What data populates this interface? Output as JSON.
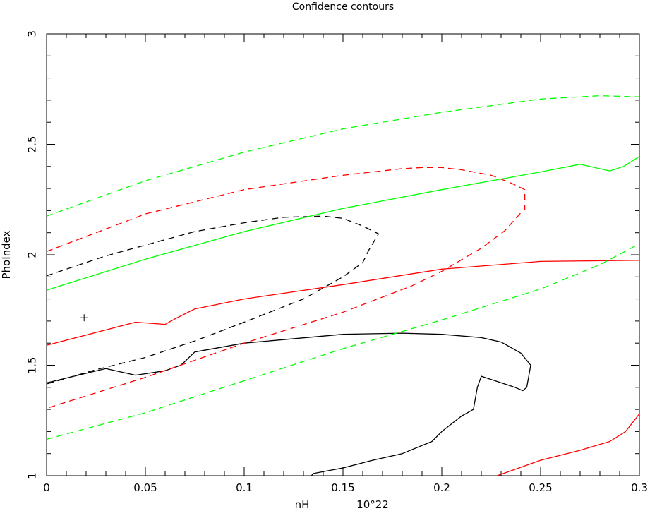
{
  "chart_data": {
    "type": "line",
    "title": "Confidence contours",
    "xlabel": "nH        10^22",
    "ylabel": "PhoIndex",
    "xlim": [
      0,
      0.3
    ],
    "ylim": [
      1,
      3
    ],
    "x_ticks": [
      "0",
      "0.05",
      "0.1",
      "0.15",
      "0.2",
      "0.25",
      "0.3"
    ],
    "y_ticks": [
      "1",
      "1.5",
      "2",
      "2.5",
      "3"
    ],
    "best_fit": {
      "x": 0.019,
      "y": 1.715
    },
    "series": [
      {
        "color": "#000000",
        "dash": false,
        "points": [
          [
            0,
            1.42
          ],
          [
            0.03,
            1.485
          ],
          [
            0.045,
            1.455
          ],
          [
            0.06,
            1.475
          ],
          [
            0.068,
            1.5
          ],
          [
            0.075,
            1.56
          ],
          [
            0.1,
            1.6
          ],
          [
            0.15,
            1.64
          ],
          [
            0.18,
            1.645
          ],
          [
            0.2,
            1.64
          ],
          [
            0.22,
            1.625
          ],
          [
            0.23,
            1.605
          ],
          [
            0.24,
            1.555
          ],
          [
            0.245,
            1.5
          ],
          [
            0.243,
            1.4
          ],
          [
            0.241,
            1.385
          ],
          [
            0.237,
            1.4
          ],
          [
            0.22,
            1.45
          ],
          [
            0.218,
            1.4
          ],
          [
            0.216,
            1.3
          ],
          [
            0.21,
            1.27
          ],
          [
            0.2,
            1.2
          ],
          [
            0.195,
            1.155
          ],
          [
            0.18,
            1.1
          ],
          [
            0.165,
            1.07
          ],
          [
            0.15,
            1.035
          ],
          [
            0.135,
            1.01
          ],
          [
            0.134,
            1.0
          ]
        ]
      },
      {
        "color": "#000000",
        "dash": true,
        "points": [
          [
            0,
            1.905
          ],
          [
            0.03,
            1.995
          ],
          [
            0.075,
            2.105
          ],
          [
            0.1,
            2.145
          ],
          [
            0.12,
            2.17
          ],
          [
            0.14,
            2.175
          ],
          [
            0.15,
            2.165
          ],
          [
            0.16,
            2.13
          ],
          [
            0.168,
            2.095
          ],
          [
            0.163,
            2.02
          ],
          [
            0.16,
            1.965
          ],
          [
            0.15,
            1.9
          ],
          [
            0.13,
            1.8
          ],
          [
            0.1,
            1.695
          ],
          [
            0.075,
            1.61
          ],
          [
            0.05,
            1.535
          ],
          [
            0.025,
            1.48
          ],
          [
            0,
            1.415
          ]
        ]
      },
      {
        "color": "#ff0000",
        "dash": false,
        "points": [
          [
            0,
            1.59
          ],
          [
            0.045,
            1.695
          ],
          [
            0.06,
            1.685
          ],
          [
            0.065,
            1.71
          ],
          [
            0.075,
            1.755
          ],
          [
            0.1,
            1.8
          ],
          [
            0.15,
            1.865
          ],
          [
            0.2,
            1.935
          ],
          [
            0.25,
            1.97
          ],
          [
            0.3,
            1.975
          ]
        ]
      },
      {
        "color": "#ff0000",
        "dash": false,
        "points": [
          [
            0.228,
            1.0
          ],
          [
            0.25,
            1.07
          ],
          [
            0.27,
            1.115
          ],
          [
            0.285,
            1.155
          ],
          [
            0.293,
            1.2
          ],
          [
            0.3,
            1.28
          ]
        ]
      },
      {
        "color": "#ff0000",
        "dash": true,
        "points": [
          [
            0,
            2.015
          ],
          [
            0.05,
            2.185
          ],
          [
            0.1,
            2.295
          ],
          [
            0.15,
            2.36
          ],
          [
            0.18,
            2.39
          ],
          [
            0.19,
            2.395
          ],
          [
            0.2,
            2.395
          ],
          [
            0.21,
            2.385
          ],
          [
            0.225,
            2.36
          ],
          [
            0.235,
            2.325
          ],
          [
            0.242,
            2.295
          ],
          [
            0.242,
            2.205
          ],
          [
            0.24,
            2.19
          ],
          [
            0.232,
            2.11
          ],
          [
            0.22,
            2.03
          ],
          [
            0.2,
            1.925
          ],
          [
            0.185,
            1.86
          ],
          [
            0.15,
            1.74
          ],
          [
            0.1,
            1.6
          ],
          [
            0.05,
            1.445
          ],
          [
            0,
            1.305
          ]
        ]
      },
      {
        "color": "#00ff00",
        "dash": false,
        "points": [
          [
            0,
            1.84
          ],
          [
            0.05,
            1.98
          ],
          [
            0.1,
            2.105
          ],
          [
            0.15,
            2.21
          ],
          [
            0.2,
            2.295
          ],
          [
            0.25,
            2.375
          ],
          [
            0.27,
            2.41
          ],
          [
            0.285,
            2.38
          ],
          [
            0.292,
            2.4
          ],
          [
            0.3,
            2.445
          ]
        ]
      },
      {
        "color": "#00ff00",
        "dash": true,
        "points": [
          [
            0,
            2.175
          ],
          [
            0.05,
            2.335
          ],
          [
            0.1,
            2.465
          ],
          [
            0.15,
            2.57
          ],
          [
            0.2,
            2.645
          ],
          [
            0.25,
            2.705
          ],
          [
            0.28,
            2.72
          ],
          [
            0.3,
            2.715
          ]
        ]
      },
      {
        "color": "#00ff00",
        "dash": true,
        "points": [
          [
            0,
            1.165
          ],
          [
            0.05,
            1.285
          ],
          [
            0.1,
            1.43
          ],
          [
            0.15,
            1.575
          ],
          [
            0.2,
            1.705
          ],
          [
            0.25,
            1.845
          ],
          [
            0.28,
            1.955
          ],
          [
            0.3,
            2.05
          ]
        ]
      }
    ]
  }
}
